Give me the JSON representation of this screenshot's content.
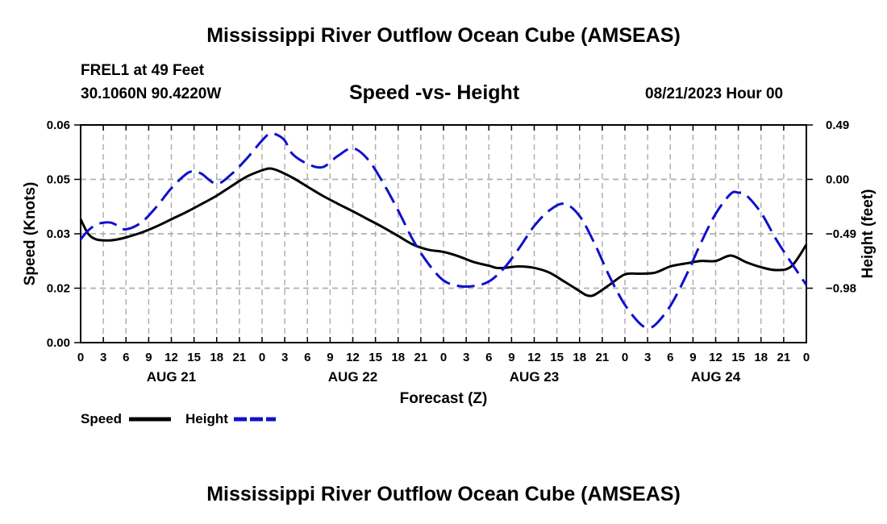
{
  "header": {
    "title": "Mississippi River Outflow Ocean Cube (AMSEAS)",
    "station": "FREL1 at 49 Feet",
    "coords": "30.1060N  90.4220W",
    "subtitle": "Speed -vs- Height",
    "datetime": "08/21/2023 Hour 00"
  },
  "footer": {
    "title": "Mississippi River Outflow Ocean Cube (AMSEAS)"
  },
  "colors": {
    "speed": "#000000",
    "height": "#1010cc",
    "grid": "#b0b0b0"
  },
  "chart_data": {
    "type": "line",
    "title": "Speed -vs- Height",
    "xlabel": "Forecast (Z)",
    "ylabel": "Speed (Knots)",
    "y2label": "Height (feet)",
    "xlim": [
      0,
      96
    ],
    "x_tick_step": 3,
    "x_tick_labels": [
      "0",
      "3",
      "6",
      "9",
      "12",
      "15",
      "18",
      "21",
      "0",
      "3",
      "6",
      "9",
      "12",
      "15",
      "18",
      "21",
      "0",
      "3",
      "6",
      "9",
      "12",
      "15",
      "18",
      "21",
      "0",
      "3",
      "6",
      "9",
      "12",
      "15",
      "18",
      "21",
      "0"
    ],
    "day_labels": [
      {
        "label": "AUG 21",
        "x": 12
      },
      {
        "label": "AUG 22",
        "x": 36
      },
      {
        "label": "AUG 23",
        "x": 60
      },
      {
        "label": "AUG 24",
        "x": 84
      }
    ],
    "ylim": [
      0,
      0.06
    ],
    "y_ticks": [
      0,
      0.015,
      0.03,
      0.045,
      0.06
    ],
    "y_tick_labels": [
      "0.00",
      "0.02",
      "0.03",
      "0.05",
      "0.06"
    ],
    "y2lim": [
      -1.47,
      0.49
    ],
    "y2_ticks": [
      -0.98,
      -0.49,
      0.0,
      0.49
    ],
    "y2_tick_labels": [
      "-0.98",
      "-0.49",
      "0.00",
      "0.49"
    ],
    "legend": [
      {
        "label": "Speed",
        "series": "speed"
      },
      {
        "label": "Height",
        "series": "height"
      }
    ],
    "series": [
      {
        "name": "Speed",
        "axis": "left",
        "style": "solid",
        "x": [
          0,
          1,
          2,
          3,
          4,
          5,
          6,
          8,
          10,
          12,
          14,
          16,
          18,
          20,
          22,
          24,
          25,
          26,
          28,
          30,
          32,
          34,
          36,
          38,
          40,
          42,
          44,
          46,
          48,
          50,
          52,
          54,
          55,
          56,
          58,
          60,
          62,
          64,
          66,
          67,
          68,
          70,
          72,
          74,
          76,
          78,
          80,
          82,
          84,
          86,
          88,
          90,
          92,
          94,
          96
        ],
        "values": [
          0.034,
          0.03,
          0.0285,
          0.0282,
          0.0282,
          0.0285,
          0.029,
          0.0303,
          0.032,
          0.034,
          0.036,
          0.0382,
          0.0405,
          0.0432,
          0.0458,
          0.0475,
          0.048,
          0.0475,
          0.0455,
          0.043,
          0.0405,
          0.0383,
          0.0362,
          0.034,
          0.0318,
          0.0294,
          0.027,
          0.0256,
          0.025,
          0.0238,
          0.0222,
          0.0212,
          0.0206,
          0.0206,
          0.021,
          0.0206,
          0.0193,
          0.0168,
          0.0142,
          0.013,
          0.0132,
          0.016,
          0.0188,
          0.019,
          0.0193,
          0.021,
          0.0218,
          0.0225,
          0.0225,
          0.024,
          0.0222,
          0.0208,
          0.02,
          0.021,
          0.027
        ]
      },
      {
        "name": "Height",
        "axis": "right",
        "style": "dashed",
        "x": [
          0,
          1,
          2,
          3,
          4,
          5,
          6,
          8,
          10,
          12,
          14,
          15,
          16,
          18,
          20,
          22,
          24,
          25,
          26,
          27,
          28,
          30,
          32,
          34,
          36,
          38,
          40,
          42,
          44,
          46,
          48,
          50,
          52,
          54,
          56,
          58,
          60,
          62,
          64,
          66,
          68,
          70,
          72,
          74,
          75,
          76,
          78,
          80,
          82,
          84,
          86,
          87,
          88,
          90,
          92,
          94,
          96
        ],
        "values": [
          -0.54,
          -0.46,
          -0.41,
          -0.39,
          -0.39,
          -0.42,
          -0.45,
          -0.39,
          -0.25,
          -0.08,
          0.05,
          0.07,
          0.05,
          -0.04,
          0.05,
          0.19,
          0.35,
          0.41,
          0.4,
          0.35,
          0.23,
          0.14,
          0.11,
          0.21,
          0.28,
          0.18,
          -0.03,
          -0.28,
          -0.55,
          -0.76,
          -0.91,
          -0.96,
          -0.96,
          -0.92,
          -0.8,
          -0.62,
          -0.42,
          -0.28,
          -0.22,
          -0.33,
          -0.58,
          -0.88,
          -1.13,
          -1.3,
          -1.33,
          -1.31,
          -1.14,
          -0.88,
          -0.58,
          -0.31,
          -0.13,
          -0.12,
          -0.14,
          -0.3,
          -0.54,
          -0.75,
          -0.95
        ]
      }
    ]
  }
}
